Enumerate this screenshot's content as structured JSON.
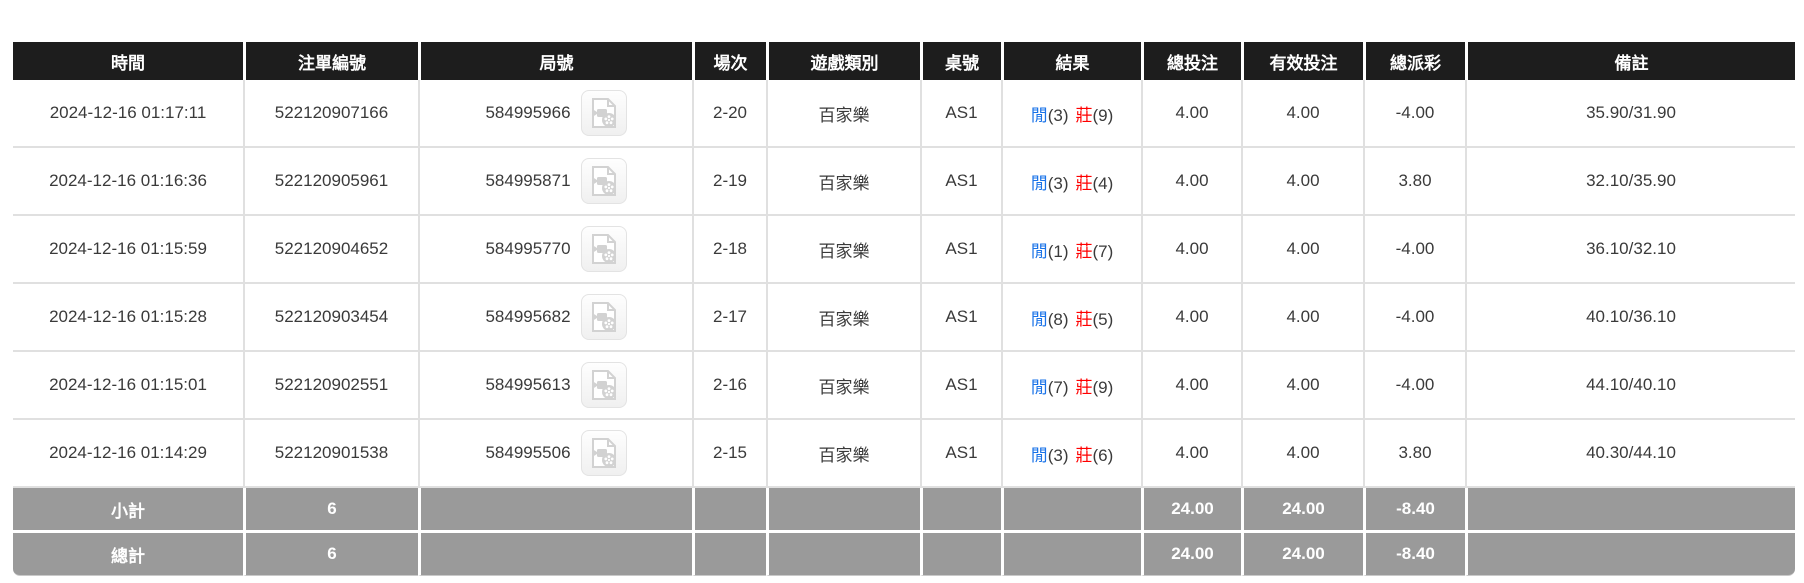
{
  "colors": {
    "header_bg": "#1d1d1d",
    "header_text": "#ffffff",
    "body_text": "#3a3a3a",
    "player_blue": "#1a73e8",
    "banker_red": "#ff0000",
    "negative_red": "#ff0000",
    "footer_bg": "#9a9a9a",
    "footer_text": "#ffffff",
    "footer_negative_red": "#e60000",
    "grid_line": "#e0e0e0"
  },
  "table": {
    "columns": [
      {
        "id": "time",
        "label": "時間"
      },
      {
        "id": "bet_id",
        "label": "注單編號"
      },
      {
        "id": "round",
        "label": "局號"
      },
      {
        "id": "session",
        "label": "場次"
      },
      {
        "id": "game_type",
        "label": "遊戲類別"
      },
      {
        "id": "table_no",
        "label": "桌號"
      },
      {
        "id": "result",
        "label": "結果"
      },
      {
        "id": "total_bet",
        "label": "總投注"
      },
      {
        "id": "valid_bet",
        "label": "有效投注"
      },
      {
        "id": "total_payout",
        "label": "總派彩"
      },
      {
        "id": "remark",
        "label": "備註"
      }
    ],
    "rows": [
      {
        "time": "2024-12-16 01:17:11",
        "bet_id": "522120907166",
        "round": "584995966",
        "session": "2-20",
        "game_type": "百家樂",
        "table_no": "AS1",
        "result": {
          "player_label": "閒",
          "player_score": "(3)",
          "banker_label": "莊",
          "banker_score": "(9)"
        },
        "total_bet": "4.00",
        "valid_bet": "4.00",
        "total_payout": "-4.00",
        "remark": "35.90/31.90"
      },
      {
        "time": "2024-12-16 01:16:36",
        "bet_id": "522120905961",
        "round": "584995871",
        "session": "2-19",
        "game_type": "百家樂",
        "table_no": "AS1",
        "result": {
          "player_label": "閒",
          "player_score": "(3)",
          "banker_label": "莊",
          "banker_score": "(4)"
        },
        "total_bet": "4.00",
        "valid_bet": "4.00",
        "total_payout": "3.80",
        "remark": "32.10/35.90"
      },
      {
        "time": "2024-12-16 01:15:59",
        "bet_id": "522120904652",
        "round": "584995770",
        "session": "2-18",
        "game_type": "百家樂",
        "table_no": "AS1",
        "result": {
          "player_label": "閒",
          "player_score": "(1)",
          "banker_label": "莊",
          "banker_score": "(7)"
        },
        "total_bet": "4.00",
        "valid_bet": "4.00",
        "total_payout": "-4.00",
        "remark": "36.10/32.10"
      },
      {
        "time": "2024-12-16 01:15:28",
        "bet_id": "522120903454",
        "round": "584995682",
        "session": "2-17",
        "game_type": "百家樂",
        "table_no": "AS1",
        "result": {
          "player_label": "閒",
          "player_score": "(8)",
          "banker_label": "莊",
          "banker_score": "(5)"
        },
        "total_bet": "4.00",
        "valid_bet": "4.00",
        "total_payout": "-4.00",
        "remark": "40.10/36.10"
      },
      {
        "time": "2024-12-16 01:15:01",
        "bet_id": "522120902551",
        "round": "584995613",
        "session": "2-16",
        "game_type": "百家樂",
        "table_no": "AS1",
        "result": {
          "player_label": "閒",
          "player_score": "(7)",
          "banker_label": "莊",
          "banker_score": "(9)"
        },
        "total_bet": "4.00",
        "valid_bet": "4.00",
        "total_payout": "-4.00",
        "remark": "44.10/40.10"
      },
      {
        "time": "2024-12-16 01:14:29",
        "bet_id": "522120901538",
        "round": "584995506",
        "session": "2-15",
        "game_type": "百家樂",
        "table_no": "AS1",
        "result": {
          "player_label": "閒",
          "player_score": "(3)",
          "banker_label": "莊",
          "banker_score": "(6)"
        },
        "total_bet": "4.00",
        "valid_bet": "4.00",
        "total_payout": "3.80",
        "remark": "40.30/44.10"
      }
    ],
    "footer_rows": [
      {
        "label": "小計",
        "count": "6",
        "total_bet": "24.00",
        "valid_bet": "24.00",
        "total_payout": "-8.40"
      },
      {
        "label": "總計",
        "count": "6",
        "total_bet": "24.00",
        "valid_bet": "24.00",
        "total_payout": "-8.40"
      }
    ],
    "icons": {
      "round_column_icon": "video-record-icon"
    }
  }
}
